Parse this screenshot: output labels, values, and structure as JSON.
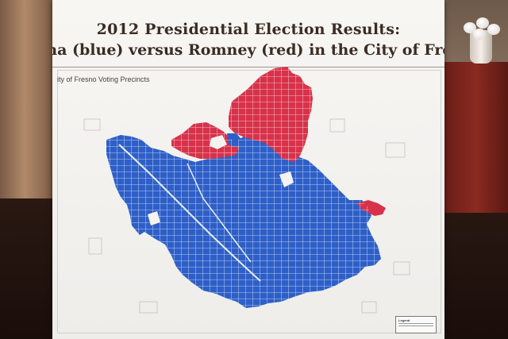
{
  "poster": {
    "title_line1": "2012 Presidential Election Results:",
    "title_line2": "ma (blue) versus Romney (red) in the City of Fresn",
    "map_label": "ity of Fresno Voting Precincts",
    "legend_title": "Legend"
  },
  "colors": {
    "obama": "#2e5fc8",
    "romney": "#d8324a",
    "poster_bg": "#f7f6f3"
  }
}
